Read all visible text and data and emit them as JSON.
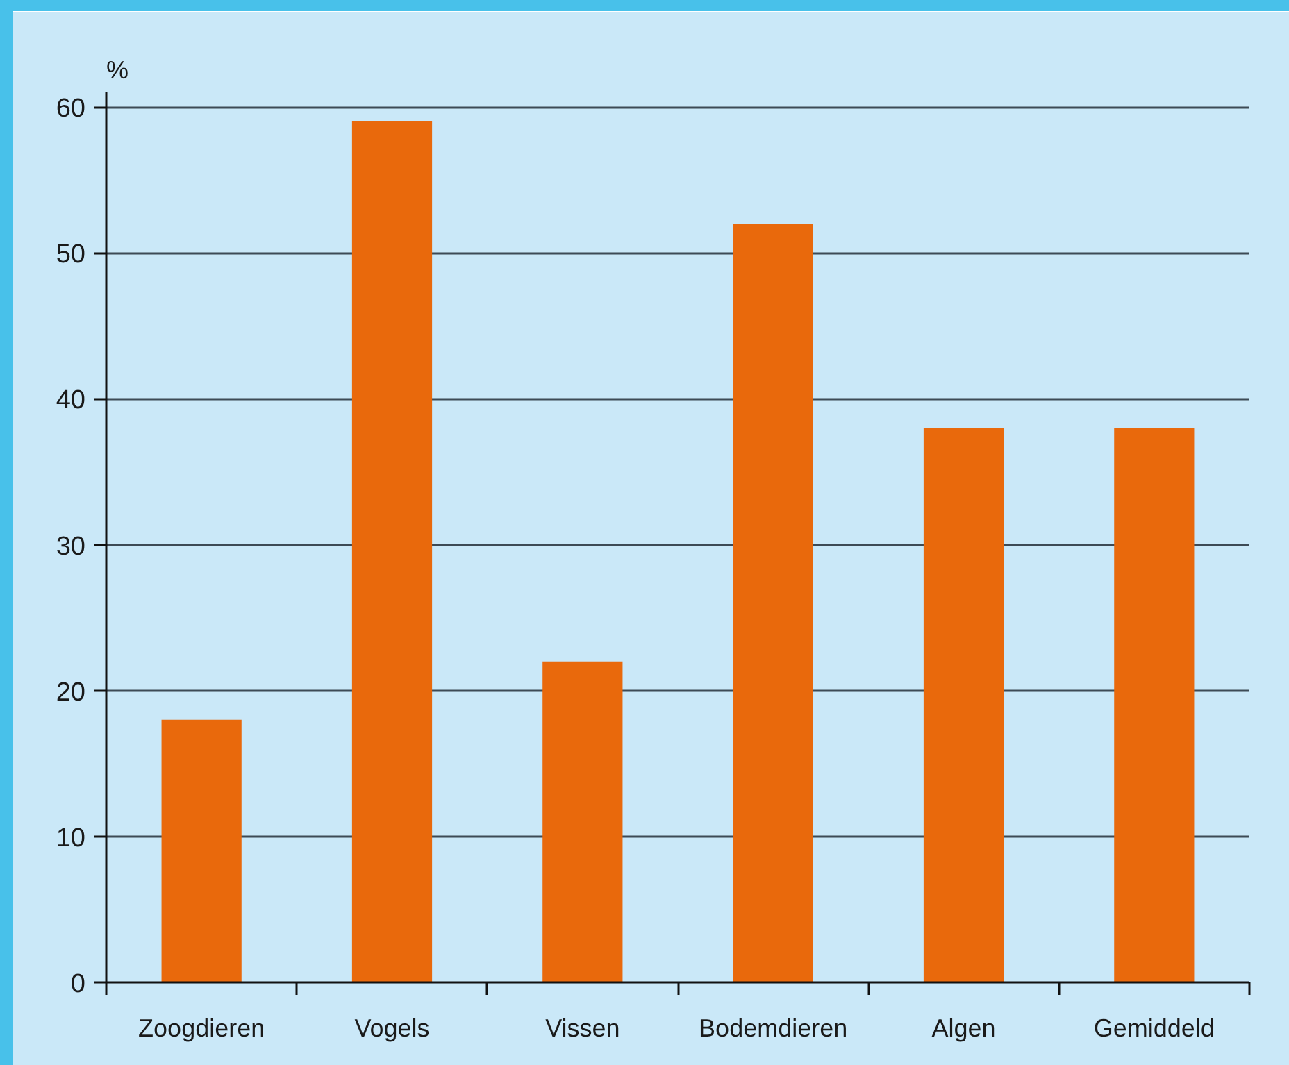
{
  "chart_data": {
    "type": "bar",
    "ylabel": "%",
    "categories": [
      "Zoogdieren",
      "Vogels",
      "Vissen",
      "Bodemdieren",
      "Algen",
      "Gemiddeld"
    ],
    "values": [
      18,
      59,
      22,
      52,
      38,
      38
    ],
    "color": "#e9690c",
    "ylim": [
      0,
      61
    ],
    "yticks": [
      0,
      10,
      20,
      30,
      40,
      50,
      60
    ],
    "grid": "y"
  }
}
